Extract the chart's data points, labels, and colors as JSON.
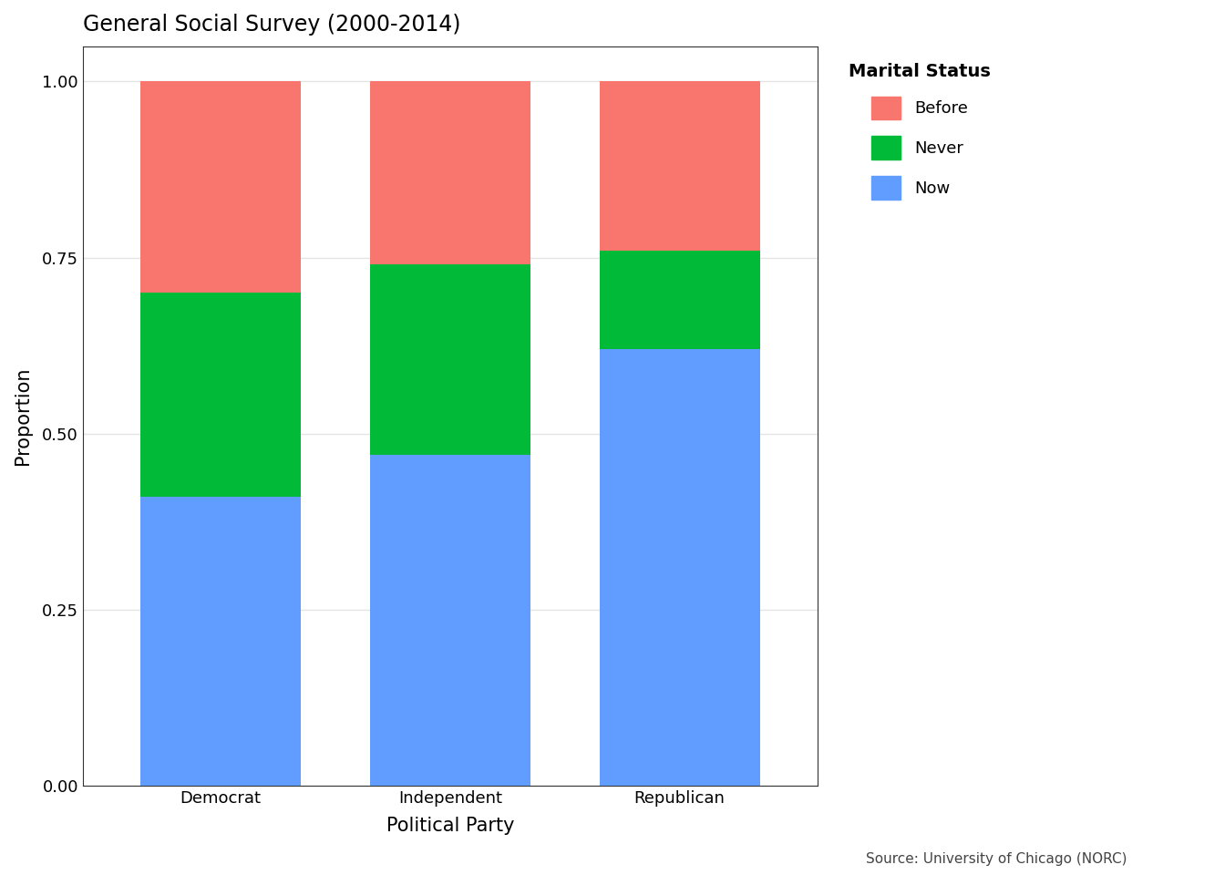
{
  "categories": [
    "Democrat",
    "Independent",
    "Republican"
  ],
  "now": [
    0.41,
    0.47,
    0.62
  ],
  "never": [
    0.29,
    0.27,
    0.14
  ],
  "before": [
    0.3,
    0.26,
    0.24
  ],
  "colors": {
    "now": "#619CFF",
    "never": "#00BA38",
    "before": "#F8766D"
  },
  "title": "General Social Survey (2000-2014)",
  "xlabel": "Political Party",
  "ylabel": "Proportion",
  "legend_title": "Marital Status",
  "source_text": "Source: University of Chicago (NORC)",
  "ylim": [
    0.0,
    1.05
  ],
  "yticks": [
    0.0,
    0.25,
    0.5,
    0.75,
    1.0
  ],
  "ytick_labels": [
    "0.00",
    "0.25",
    "0.50",
    "0.75",
    "1.00"
  ],
  "background_color": "#ffffff",
  "panel_color": "#ffffff",
  "grid_color": "#e5e5e5",
  "border_color": "#333333",
  "title_fontsize": 17,
  "axis_label_fontsize": 15,
  "tick_fontsize": 13,
  "legend_fontsize": 13,
  "legend_title_fontsize": 14,
  "source_fontsize": 11,
  "bar_width": 0.7
}
